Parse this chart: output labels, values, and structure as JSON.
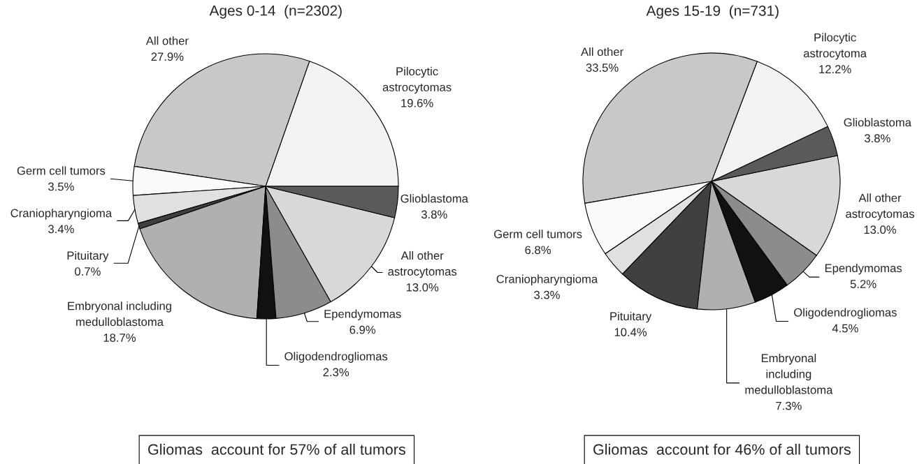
{
  "chart_data": [
    {
      "type": "pie",
      "title": "Ages 0-14  (n=2302)",
      "categories": [
        "Pilocytic\nastrocytomas",
        "All other",
        "Germ cell tumors",
        "Craniopharyngioma",
        "Pituitary",
        "Embryonal including\nmedulloblastoma",
        "Oligodendrogliomas",
        "Ependymomas",
        "All other\nastrocytomas",
        "Glioblastoma"
      ],
      "values": [
        19.6,
        27.9,
        3.5,
        3.4,
        0.7,
        18.7,
        2.3,
        6.9,
        13.0,
        3.8
      ],
      "colors": [
        "#f2f2f2",
        "#c8c8c8",
        "#fafafa",
        "#e0e0e0",
        "#404040",
        "#b0b0b0",
        "#111111",
        "#8c8c8c",
        "#d8d8d8",
        "#5a5a5a"
      ],
      "value_labels": [
        "19.6%",
        "27.9%",
        "3.5%",
        "3.4%",
        "0.7%",
        "18.7%",
        "2.3%",
        "6.9%",
        "13.0%",
        "3.8%"
      ],
      "annotations": [
        "Gliomas  account for 57% of all tumors"
      ]
    },
    {
      "type": "pie",
      "title": "Ages 15-19  (n=731)",
      "categories": [
        "Pilocytic\nastrocytoma",
        "All other",
        "Germ cell tumors",
        "Craniopharyngioma",
        "Pituitary",
        "Embryonal\nincluding\nmedulloblastoma",
        "Oligodendrogliomas",
        "Ependymomas",
        "All other\nastrocytomas",
        "Glioblastoma"
      ],
      "values": [
        12.2,
        33.5,
        6.8,
        3.3,
        10.4,
        7.3,
        4.5,
        5.2,
        13.0,
        3.8
      ],
      "colors": [
        "#f2f2f2",
        "#c8c8c8",
        "#fafafa",
        "#e0e0e0",
        "#404040",
        "#b0b0b0",
        "#111111",
        "#8c8c8c",
        "#d8d8d8",
        "#5a5a5a"
      ],
      "value_labels": [
        "12.2%",
        "33.5%",
        "6.8%",
        "3.3%",
        "10.4%",
        "7.3%",
        "4.5%",
        "5.2%",
        "13.0%",
        "3.8%"
      ],
      "annotations": [
        "Gliomas  account for 46% of all tumors"
      ]
    }
  ]
}
